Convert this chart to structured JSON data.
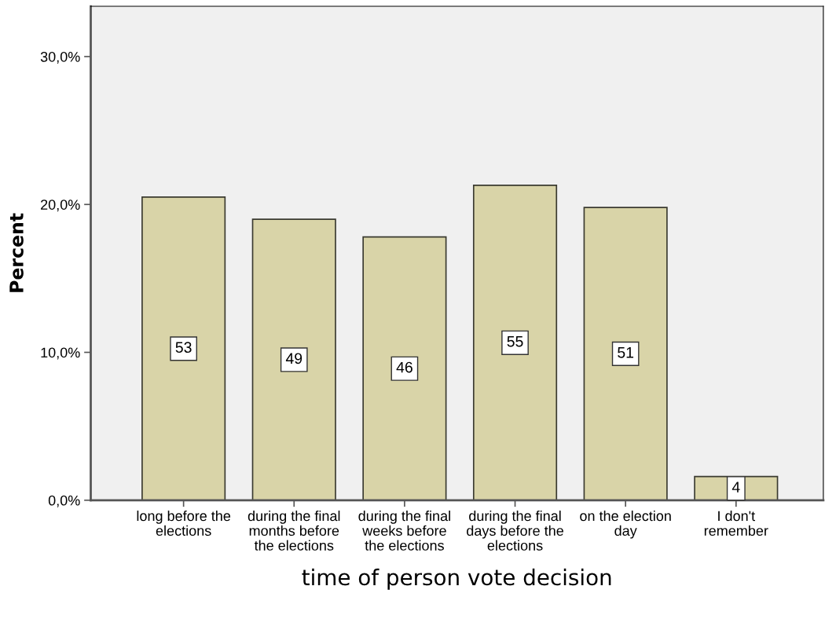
{
  "chart_data": {
    "type": "bar",
    "xlabel": "time of person vote decision",
    "ylabel": "Percent",
    "categories": [
      "long before the\nelections",
      "during the final\nmonths before\nthe elections",
      "during the final\nweeks before\nthe elections",
      "during the final\ndays before the\nelections",
      "on the election\nday",
      "I don't\nremember"
    ],
    "values": [
      20.5,
      19.0,
      17.8,
      21.3,
      19.8,
      1.6
    ],
    "annotations": [
      "53",
      "49",
      "46",
      "55",
      "51",
      "4"
    ],
    "color": "#d9d4a8",
    "ylim": [
      0,
      33.4
    ],
    "yticks": [
      {
        "value": 0,
        "label": "0,0%"
      },
      {
        "value": 10,
        "label": "10,0%"
      },
      {
        "value": 20,
        "label": "20,0%"
      },
      {
        "value": 30,
        "label": "30,0%"
      }
    ],
    "grid": false,
    "legend": false
  }
}
